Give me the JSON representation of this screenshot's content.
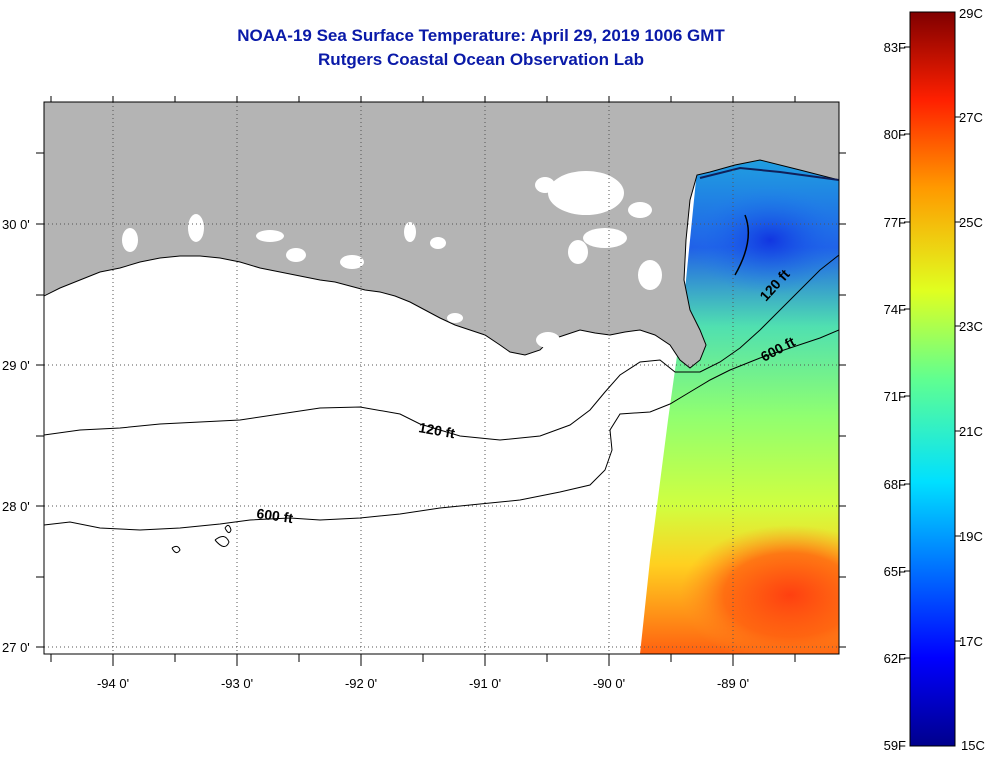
{
  "title": "NOAA-19 Sea Surface Temperature:  April 29, 2019 1006 GMT",
  "subtitle": "Rutgers Coastal Ocean Observation Lab",
  "axes": {
    "lon_labels": [
      "-94 0'",
      "-93 0'",
      "-92 0'",
      "-91 0'",
      "-90 0'",
      "-89 0'"
    ],
    "lat_labels": [
      "30 0'",
      "29 0'",
      "28 0'",
      "27 0'"
    ]
  },
  "contours": {
    "label_120_west": "120 ft",
    "label_600_west": "600 ft",
    "label_120_east": "120 ft",
    "label_600_east": "600 ft"
  },
  "colorbar": {
    "fahrenheit_labels": [
      "83F",
      "80F",
      "77F",
      "74F",
      "71F",
      "68F",
      "65F",
      "62F",
      "59F"
    ],
    "celsius_labels": [
      "29C",
      "27C",
      "25C",
      "23C",
      "21C",
      "19C",
      "17C",
      "15C"
    ],
    "range_celsius": [
      15,
      29
    ]
  },
  "colors": {
    "land": "#b4b4b4",
    "title": "#0a1aa8",
    "cold": "#000080",
    "warm": "#800000"
  }
}
